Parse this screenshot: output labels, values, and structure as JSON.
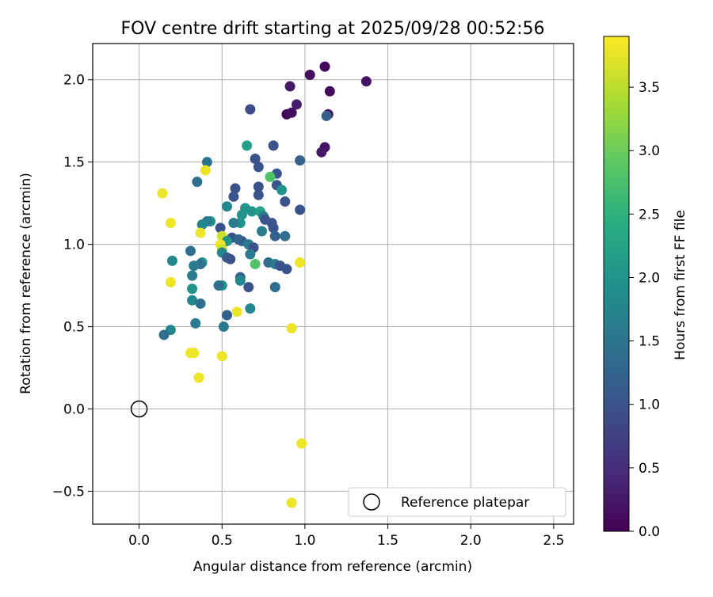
{
  "chart_data": {
    "type": "scatter",
    "title": "FOV centre drift starting at 2025/09/28 00:52:56",
    "xlabel": "Angular distance from reference (arcmin)",
    "ylabel": "Rotation from reference (arcmin)",
    "xlim": [
      -0.28,
      2.62
    ],
    "ylim": [
      -0.7,
      2.22
    ],
    "xticks": [
      0.0,
      0.5,
      1.0,
      1.5,
      2.0,
      2.5
    ],
    "yticks": [
      -0.5,
      0.0,
      0.5,
      1.0,
      1.5,
      2.0
    ],
    "xtick_labels": [
      "0.0",
      "0.5",
      "1.0",
      "1.5",
      "2.0",
      "2.5"
    ],
    "ytick_labels": [
      "−0.5",
      "0.0",
      "0.5",
      "1.0",
      "1.5",
      "2.0"
    ],
    "grid": true,
    "colorbar": {
      "label": "Hours from first FF file",
      "range": [
        0,
        3.9
      ],
      "ticks": [
        0.0,
        0.5,
        1.0,
        1.5,
        2.0,
        2.5,
        3.0,
        3.5
      ],
      "tick_labels": [
        "0.0",
        "0.5",
        "1.0",
        "1.5",
        "2.0",
        "2.5",
        "3.0",
        "3.5"
      ],
      "colormap": "viridis"
    },
    "legend": {
      "label": "Reference platepar",
      "position": "lower-right"
    },
    "reference_point": {
      "x": 0.0,
      "y": 0.0
    },
    "points": [
      {
        "x": 1.12,
        "y": 2.08,
        "c": 0.1
      },
      {
        "x": 1.03,
        "y": 2.03,
        "c": 0.15
      },
      {
        "x": 1.37,
        "y": 1.99,
        "c": 0.2
      },
      {
        "x": 0.91,
        "y": 1.96,
        "c": 0.25
      },
      {
        "x": 1.15,
        "y": 1.93,
        "c": 0.1
      },
      {
        "x": 0.95,
        "y": 1.85,
        "c": 0.3
      },
      {
        "x": 0.67,
        "y": 1.82,
        "c": 0.9
      },
      {
        "x": 0.89,
        "y": 1.79,
        "c": 0.05
      },
      {
        "x": 0.92,
        "y": 1.8,
        "c": 0.15
      },
      {
        "x": 1.14,
        "y": 1.79,
        "c": 0.2
      },
      {
        "x": 1.13,
        "y": 1.78,
        "c": 1.2
      },
      {
        "x": 0.81,
        "y": 1.6,
        "c": 1.0
      },
      {
        "x": 0.65,
        "y": 1.6,
        "c": 2.2
      },
      {
        "x": 1.12,
        "y": 1.59,
        "c": 0.2
      },
      {
        "x": 1.1,
        "y": 1.56,
        "c": 0.25
      },
      {
        "x": 0.7,
        "y": 1.52,
        "c": 1.0
      },
      {
        "x": 0.97,
        "y": 1.51,
        "c": 1.2
      },
      {
        "x": 0.41,
        "y": 1.5,
        "c": 1.5
      },
      {
        "x": 0.72,
        "y": 1.47,
        "c": 1.0
      },
      {
        "x": 0.4,
        "y": 1.45,
        "c": 3.8
      },
      {
        "x": 0.83,
        "y": 1.43,
        "c": 1.0
      },
      {
        "x": 0.79,
        "y": 1.41,
        "c": 2.8
      },
      {
        "x": 0.35,
        "y": 1.38,
        "c": 1.4
      },
      {
        "x": 0.83,
        "y": 1.36,
        "c": 1.0
      },
      {
        "x": 0.72,
        "y": 1.35,
        "c": 1.0
      },
      {
        "x": 0.58,
        "y": 1.34,
        "c": 1.0
      },
      {
        "x": 0.86,
        "y": 1.33,
        "c": 2.0
      },
      {
        "x": 0.14,
        "y": 1.31,
        "c": 3.8
      },
      {
        "x": 0.72,
        "y": 1.3,
        "c": 1.0
      },
      {
        "x": 0.57,
        "y": 1.29,
        "c": 1.0
      },
      {
        "x": 0.88,
        "y": 1.26,
        "c": 1.0
      },
      {
        "x": 0.53,
        "y": 1.23,
        "c": 1.8
      },
      {
        "x": 0.64,
        "y": 1.22,
        "c": 2.0
      },
      {
        "x": 0.97,
        "y": 1.21,
        "c": 1.0
      },
      {
        "x": 0.68,
        "y": 1.2,
        "c": 2.0
      },
      {
        "x": 0.73,
        "y": 1.2,
        "c": 2.2
      },
      {
        "x": 0.62,
        "y": 1.18,
        "c": 2.0
      },
      {
        "x": 0.75,
        "y": 1.17,
        "c": 1.6
      },
      {
        "x": 0.76,
        "y": 1.15,
        "c": 1.0
      },
      {
        "x": 0.43,
        "y": 1.14,
        "c": 2.0
      },
      {
        "x": 0.41,
        "y": 1.14,
        "c": 1.6
      },
      {
        "x": 0.8,
        "y": 1.13,
        "c": 1.0
      },
      {
        "x": 0.19,
        "y": 1.13,
        "c": 3.8
      },
      {
        "x": 0.61,
        "y": 1.13,
        "c": 2.0
      },
      {
        "x": 0.57,
        "y": 1.13,
        "c": 1.6
      },
      {
        "x": 0.38,
        "y": 1.12,
        "c": 1.8
      },
      {
        "x": 0.49,
        "y": 1.1,
        "c": 1.0
      },
      {
        "x": 0.81,
        "y": 1.1,
        "c": 1.0
      },
      {
        "x": 0.74,
        "y": 1.08,
        "c": 1.6
      },
      {
        "x": 0.37,
        "y": 1.07,
        "c": 3.8
      },
      {
        "x": 0.82,
        "y": 1.05,
        "c": 1.2
      },
      {
        "x": 0.88,
        "y": 1.05,
        "c": 1.4
      },
      {
        "x": 0.5,
        "y": 1.05,
        "c": 3.6
      },
      {
        "x": 0.56,
        "y": 1.04,
        "c": 1.0
      },
      {
        "x": 0.6,
        "y": 1.03,
        "c": 1.3
      },
      {
        "x": 0.62,
        "y": 1.02,
        "c": 1.2
      },
      {
        "x": 0.53,
        "y": 1.02,
        "c": 2.0
      },
      {
        "x": 0.66,
        "y": 1.0,
        "c": 1.6
      },
      {
        "x": 0.49,
        "y": 1.0,
        "c": 3.8
      },
      {
        "x": 0.69,
        "y": 0.98,
        "c": 1.0
      },
      {
        "x": 0.5,
        "y": 0.97,
        "c": 3.6
      },
      {
        "x": 0.31,
        "y": 0.96,
        "c": 1.4
      },
      {
        "x": 0.5,
        "y": 0.95,
        "c": 1.8
      },
      {
        "x": 0.67,
        "y": 0.94,
        "c": 1.6
      },
      {
        "x": 0.53,
        "y": 0.92,
        "c": 1.2
      },
      {
        "x": 0.55,
        "y": 0.91,
        "c": 1.0
      },
      {
        "x": 0.2,
        "y": 0.9,
        "c": 1.8
      },
      {
        "x": 0.38,
        "y": 0.89,
        "c": 2.0
      },
      {
        "x": 0.37,
        "y": 0.88,
        "c": 1.4
      },
      {
        "x": 0.97,
        "y": 0.89,
        "c": 3.8
      },
      {
        "x": 0.78,
        "y": 0.89,
        "c": 1.4
      },
      {
        "x": 0.82,
        "y": 0.88,
        "c": 1.6
      },
      {
        "x": 0.85,
        "y": 0.87,
        "c": 1.0
      },
      {
        "x": 0.7,
        "y": 0.88,
        "c": 2.8
      },
      {
        "x": 0.33,
        "y": 0.87,
        "c": 1.6
      },
      {
        "x": 0.89,
        "y": 0.85,
        "c": 1.0
      },
      {
        "x": 0.32,
        "y": 0.81,
        "c": 1.6
      },
      {
        "x": 0.61,
        "y": 0.8,
        "c": 1.2
      },
      {
        "x": 0.61,
        "y": 0.78,
        "c": 1.8
      },
      {
        "x": 0.19,
        "y": 0.77,
        "c": 3.8
      },
      {
        "x": 0.5,
        "y": 0.75,
        "c": 2.0
      },
      {
        "x": 0.48,
        "y": 0.75,
        "c": 1.4
      },
      {
        "x": 0.66,
        "y": 0.74,
        "c": 1.0
      },
      {
        "x": 0.82,
        "y": 0.74,
        "c": 1.4
      },
      {
        "x": 0.32,
        "y": 0.73,
        "c": 2.0
      },
      {
        "x": 0.32,
        "y": 0.66,
        "c": 1.8
      },
      {
        "x": 0.37,
        "y": 0.64,
        "c": 1.4
      },
      {
        "x": 0.67,
        "y": 0.61,
        "c": 1.8
      },
      {
        "x": 0.59,
        "y": 0.59,
        "c": 3.8
      },
      {
        "x": 0.53,
        "y": 0.57,
        "c": 1.2
      },
      {
        "x": 0.34,
        "y": 0.52,
        "c": 1.6
      },
      {
        "x": 0.51,
        "y": 0.5,
        "c": 1.6
      },
      {
        "x": 0.92,
        "y": 0.49,
        "c": 3.8
      },
      {
        "x": 0.19,
        "y": 0.48,
        "c": 1.8
      },
      {
        "x": 0.15,
        "y": 0.45,
        "c": 1.4
      },
      {
        "x": 0.33,
        "y": 0.34,
        "c": 3.8
      },
      {
        "x": 0.31,
        "y": 0.34,
        "c": 3.8
      },
      {
        "x": 0.5,
        "y": 0.32,
        "c": 3.8
      },
      {
        "x": 0.36,
        "y": 0.19,
        "c": 3.8
      },
      {
        "x": 0.98,
        "y": -0.21,
        "c": 3.8
      },
      {
        "x": 0.92,
        "y": -0.57,
        "c": 3.8
      }
    ]
  }
}
